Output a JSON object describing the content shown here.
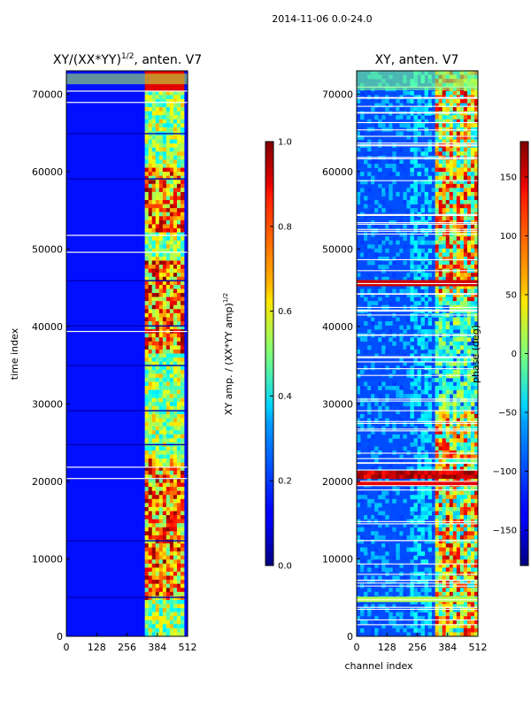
{
  "figure": {
    "suptitle": "2014-11-06 0.0-24.0"
  },
  "chart_data": [
    {
      "type": "heatmap",
      "title": "XY/(XX*YY)",
      "title_superscript": "1/2",
      "title_suffix": ", anten. V7",
      "xlabel": "",
      "ylabel": "time index",
      "xlim": [
        0,
        512
      ],
      "ylim": [
        0,
        73000
      ],
      "xticks": [
        0,
        128,
        256,
        384,
        512
      ],
      "yticks": [
        0,
        10000,
        20000,
        30000,
        40000,
        50000,
        60000,
        70000
      ],
      "colormap": "jet",
      "colorbar": {
        "label": "XY amp. / (XX*YY amp)",
        "label_superscript": "1/2",
        "range": [
          0.0,
          1.0
        ],
        "ticks": [
          "0.0",
          "0.2",
          "0.4",
          "0.6",
          "0.8",
          "1.0"
        ]
      }
    },
    {
      "type": "heatmap",
      "title": "XY, anten. V7",
      "xlabel": "channel index",
      "ylabel": "",
      "xlim": [
        0,
        512
      ],
      "ylim": [
        0,
        73000
      ],
      "xticks": [
        0,
        128,
        256,
        384,
        512
      ],
      "yticks": [
        0,
        10000,
        20000,
        30000,
        40000,
        50000,
        60000,
        70000
      ],
      "colormap": "jet",
      "colorbar": {
        "label": "phase (deg)",
        "range": [
          -180,
          180
        ],
        "ticks": [
          "−150",
          "−100",
          "−50",
          "0",
          "50",
          "100",
          "150"
        ]
      }
    }
  ]
}
